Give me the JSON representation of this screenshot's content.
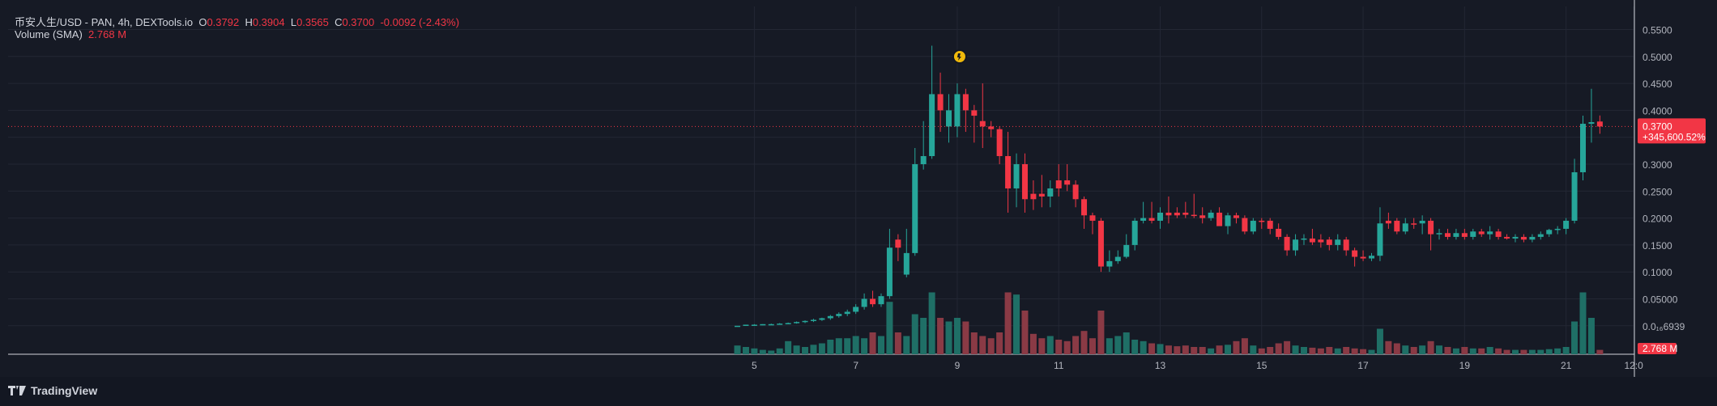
{
  "legend": {
    "symbol": "币安人生/USD - PAN, 4h, DEXTools.io",
    "o_label": "O",
    "o": "0.3792",
    "h_label": "H",
    "h": "0.3904",
    "l_label": "L",
    "l": "0.3565",
    "c_label": "C",
    "c": "0.3700",
    "change": "-0.0092 (-2.43%)",
    "volume_label": "Volume (SMA)",
    "volume_value": "2.768 M"
  },
  "price_badge": {
    "value": "0.3700",
    "pct": "+345,600.52%"
  },
  "volume_badge": "2.768 M",
  "brand": "TradingView",
  "colors": {
    "up": "#26a69a",
    "down": "#f23645",
    "up_vol": "#1f6f66",
    "down_vol": "#8a3a45",
    "bg": "#161a25"
  },
  "chart_data": {
    "type": "candlestick",
    "interval": "4h",
    "ylim": [
      0,
      0.56
    ],
    "y_ticks": [
      "0.5500",
      "0.5000",
      "0.4500",
      "0.4000",
      "0.3500",
      "0.3000",
      "0.2500",
      "0.2000",
      "0.1500",
      "0.1000",
      "0.05000",
      "0.0₁₆6939"
    ],
    "y_tick_values": [
      0.55,
      0.5,
      0.45,
      0.4,
      0.35,
      0.3,
      0.25,
      0.2,
      0.15,
      0.1,
      0.05,
      0.0
    ],
    "x_ticks": [
      "5",
      "7",
      "9",
      "11",
      "13",
      "15",
      "17",
      "19",
      "21",
      "12:0"
    ],
    "x_tick_index": [
      0,
      12,
      24,
      36,
      48,
      60,
      72,
      84,
      96,
      104
    ],
    "first_index": -2,
    "candles": [
      [
        0.0,
        0.0,
        0.0,
        0.0,
        "u",
        0.12
      ],
      [
        0.001,
        0.002,
        0.0,
        0.002,
        "u",
        0.1
      ],
      [
        0.002,
        0.003,
        0.001,
        0.002,
        "u",
        0.08
      ],
      [
        0.002,
        0.003,
        0.001,
        0.003,
        "u",
        0.06
      ],
      [
        0.003,
        0.004,
        0.002,
        0.003,
        "u",
        0.05
      ],
      [
        0.003,
        0.005,
        0.002,
        0.004,
        "u",
        0.08
      ],
      [
        0.004,
        0.006,
        0.003,
        0.005,
        "u",
        0.18
      ],
      [
        0.005,
        0.008,
        0.004,
        0.007,
        "u",
        0.12
      ],
      [
        0.007,
        0.01,
        0.005,
        0.009,
        "u",
        0.1
      ],
      [
        0.009,
        0.013,
        0.007,
        0.011,
        "u",
        0.13
      ],
      [
        0.011,
        0.015,
        0.009,
        0.014,
        "u",
        0.15
      ],
      [
        0.014,
        0.02,
        0.011,
        0.018,
        "u",
        0.2
      ],
      [
        0.018,
        0.025,
        0.015,
        0.022,
        "u",
        0.22
      ],
      [
        0.022,
        0.03,
        0.018,
        0.026,
        "u",
        0.22
      ],
      [
        0.026,
        0.04,
        0.022,
        0.035,
        "u",
        0.25
      ],
      [
        0.035,
        0.06,
        0.03,
        0.05,
        "u",
        0.22
      ],
      [
        0.05,
        0.065,
        0.035,
        0.04,
        "d",
        0.3
      ],
      [
        0.04,
        0.06,
        0.035,
        0.055,
        "u",
        0.25
      ],
      [
        0.055,
        0.18,
        0.05,
        0.145,
        "u",
        0.72
      ],
      [
        0.145,
        0.17,
        0.12,
        0.16,
        "d",
        0.3
      ],
      [
        0.095,
        0.18,
        0.09,
        0.135,
        "u",
        0.25
      ],
      [
        0.135,
        0.33,
        0.13,
        0.3,
        "u",
        0.55
      ],
      [
        0.3,
        0.38,
        0.29,
        0.315,
        "u",
        0.5
      ],
      [
        0.315,
        0.52,
        0.31,
        0.43,
        "u",
        0.85
      ],
      [
        0.43,
        0.47,
        0.36,
        0.4,
        "d",
        0.5
      ],
      [
        0.4,
        0.43,
        0.34,
        0.37,
        "u",
        0.45
      ],
      [
        0.37,
        0.45,
        0.35,
        0.43,
        "u",
        0.5
      ],
      [
        0.43,
        0.44,
        0.36,
        0.4,
        "d",
        0.45
      ],
      [
        0.4,
        0.41,
        0.34,
        0.39,
        "d",
        0.3
      ],
      [
        0.38,
        0.45,
        0.33,
        0.37,
        "d",
        0.25
      ],
      [
        0.37,
        0.38,
        0.35,
        0.365,
        "d",
        0.22
      ],
      [
        0.365,
        0.37,
        0.3,
        0.315,
        "d",
        0.3
      ],
      [
        0.315,
        0.36,
        0.21,
        0.255,
        "d",
        0.85
      ],
      [
        0.255,
        0.32,
        0.22,
        0.3,
        "u",
        0.82
      ],
      [
        0.3,
        0.32,
        0.21,
        0.235,
        "d",
        0.6
      ],
      [
        0.235,
        0.27,
        0.215,
        0.245,
        "d",
        0.28
      ],
      [
        0.245,
        0.28,
        0.22,
        0.24,
        "d",
        0.22
      ],
      [
        0.24,
        0.27,
        0.22,
        0.255,
        "u",
        0.25
      ],
      [
        0.255,
        0.3,
        0.24,
        0.27,
        "d",
        0.2
      ],
      [
        0.27,
        0.3,
        0.25,
        0.262,
        "d",
        0.18
      ],
      [
        0.262,
        0.27,
        0.22,
        0.235,
        "d",
        0.25
      ],
      [
        0.235,
        0.24,
        0.18,
        0.205,
        "d",
        0.32
      ],
      [
        0.205,
        0.21,
        0.17,
        0.195,
        "d",
        0.22
      ],
      [
        0.195,
        0.2,
        0.1,
        0.11,
        "d",
        0.6
      ],
      [
        0.11,
        0.14,
        0.1,
        0.12,
        "u",
        0.22
      ],
      [
        0.12,
        0.14,
        0.115,
        0.128,
        "u",
        0.25
      ],
      [
        0.128,
        0.17,
        0.125,
        0.15,
        "u",
        0.3
      ],
      [
        0.15,
        0.2,
        0.14,
        0.195,
        "u",
        0.2
      ],
      [
        0.195,
        0.23,
        0.19,
        0.2,
        "u",
        0.18
      ],
      [
        0.2,
        0.23,
        0.19,
        0.195,
        "d",
        0.15
      ],
      [
        0.195,
        0.22,
        0.18,
        0.21,
        "u",
        0.14
      ],
      [
        0.21,
        0.24,
        0.19,
        0.205,
        "d",
        0.12
      ],
      [
        0.205,
        0.22,
        0.2,
        0.21,
        "d",
        0.11
      ],
      [
        0.21,
        0.23,
        0.2,
        0.206,
        "d",
        0.12
      ],
      [
        0.206,
        0.245,
        0.2,
        0.205,
        "d",
        0.1
      ],
      [
        0.205,
        0.22,
        0.19,
        0.2,
        "d",
        0.1
      ],
      [
        0.2,
        0.215,
        0.195,
        0.21,
        "u",
        0.08
      ],
      [
        0.21,
        0.22,
        0.19,
        0.185,
        "d",
        0.12
      ],
      [
        0.185,
        0.21,
        0.17,
        0.205,
        "u",
        0.13
      ],
      [
        0.205,
        0.21,
        0.19,
        0.2,
        "d",
        0.18
      ],
      [
        0.2,
        0.205,
        0.17,
        0.175,
        "d",
        0.22
      ],
      [
        0.175,
        0.2,
        0.17,
        0.195,
        "u",
        0.12
      ],
      [
        0.195,
        0.2,
        0.18,
        0.195,
        "d",
        0.08
      ],
      [
        0.195,
        0.2,
        0.17,
        0.18,
        "d",
        0.1
      ],
      [
        0.18,
        0.19,
        0.16,
        0.165,
        "d",
        0.15
      ],
      [
        0.165,
        0.17,
        0.13,
        0.14,
        "d",
        0.18
      ],
      [
        0.14,
        0.17,
        0.13,
        0.16,
        "u",
        0.12
      ],
      [
        0.16,
        0.17,
        0.15,
        0.162,
        "u",
        0.1
      ],
      [
        0.162,
        0.18,
        0.15,
        0.155,
        "d",
        0.09
      ],
      [
        0.155,
        0.17,
        0.145,
        0.16,
        "d",
        0.08
      ],
      [
        0.16,
        0.165,
        0.14,
        0.15,
        "d",
        0.1
      ],
      [
        0.15,
        0.17,
        0.14,
        0.16,
        "u",
        0.08
      ],
      [
        0.16,
        0.165,
        0.13,
        0.14,
        "d",
        0.1
      ],
      [
        0.14,
        0.145,
        0.11,
        0.128,
        "d",
        0.08
      ],
      [
        0.128,
        0.14,
        0.12,
        0.125,
        "d",
        0.07
      ],
      [
        0.125,
        0.135,
        0.12,
        0.13,
        "u",
        0.06
      ],
      [
        0.13,
        0.22,
        0.12,
        0.19,
        "u",
        0.35
      ],
      [
        0.19,
        0.21,
        0.18,
        0.195,
        "d",
        0.18
      ],
      [
        0.195,
        0.2,
        0.17,
        0.175,
        "d",
        0.15
      ],
      [
        0.175,
        0.2,
        0.17,
        0.19,
        "u",
        0.12
      ],
      [
        0.19,
        0.2,
        0.18,
        0.19,
        "d",
        0.1
      ],
      [
        0.19,
        0.205,
        0.17,
        0.195,
        "u",
        0.12
      ],
      [
        0.195,
        0.2,
        0.14,
        0.17,
        "d",
        0.18
      ],
      [
        0.17,
        0.18,
        0.16,
        0.172,
        "u",
        0.12
      ],
      [
        0.172,
        0.18,
        0.16,
        0.165,
        "d",
        0.1
      ],
      [
        0.165,
        0.18,
        0.16,
        0.172,
        "u",
        0.08
      ],
      [
        0.172,
        0.18,
        0.16,
        0.165,
        "d",
        0.1
      ],
      [
        0.165,
        0.18,
        0.16,
        0.175,
        "u",
        0.08
      ],
      [
        0.175,
        0.18,
        0.165,
        0.17,
        "d",
        0.08
      ],
      [
        0.17,
        0.185,
        0.16,
        0.175,
        "u",
        0.1
      ],
      [
        0.175,
        0.18,
        0.16,
        0.165,
        "d",
        0.08
      ],
      [
        0.165,
        0.17,
        0.16,
        0.162,
        "d",
        0.06
      ],
      [
        0.162,
        0.17,
        0.155,
        0.165,
        "u",
        0.06
      ],
      [
        0.165,
        0.17,
        0.155,
        0.16,
        "d",
        0.06
      ],
      [
        0.16,
        0.17,
        0.155,
        0.165,
        "u",
        0.06
      ],
      [
        0.165,
        0.175,
        0.16,
        0.17,
        "u",
        0.06
      ],
      [
        0.17,
        0.18,
        0.165,
        0.178,
        "u",
        0.07
      ],
      [
        0.178,
        0.185,
        0.17,
        0.18,
        "u",
        0.08
      ],
      [
        0.18,
        0.2,
        0.17,
        0.195,
        "u",
        0.1
      ],
      [
        0.195,
        0.31,
        0.19,
        0.285,
        "u",
        0.45
      ],
      [
        0.285,
        0.39,
        0.27,
        0.375,
        "u",
        0.85
      ],
      [
        0.375,
        0.44,
        0.34,
        0.378,
        "u",
        0.5
      ],
      [
        0.3792,
        0.3904,
        0.3565,
        0.37,
        "d",
        0.06
      ]
    ]
  }
}
